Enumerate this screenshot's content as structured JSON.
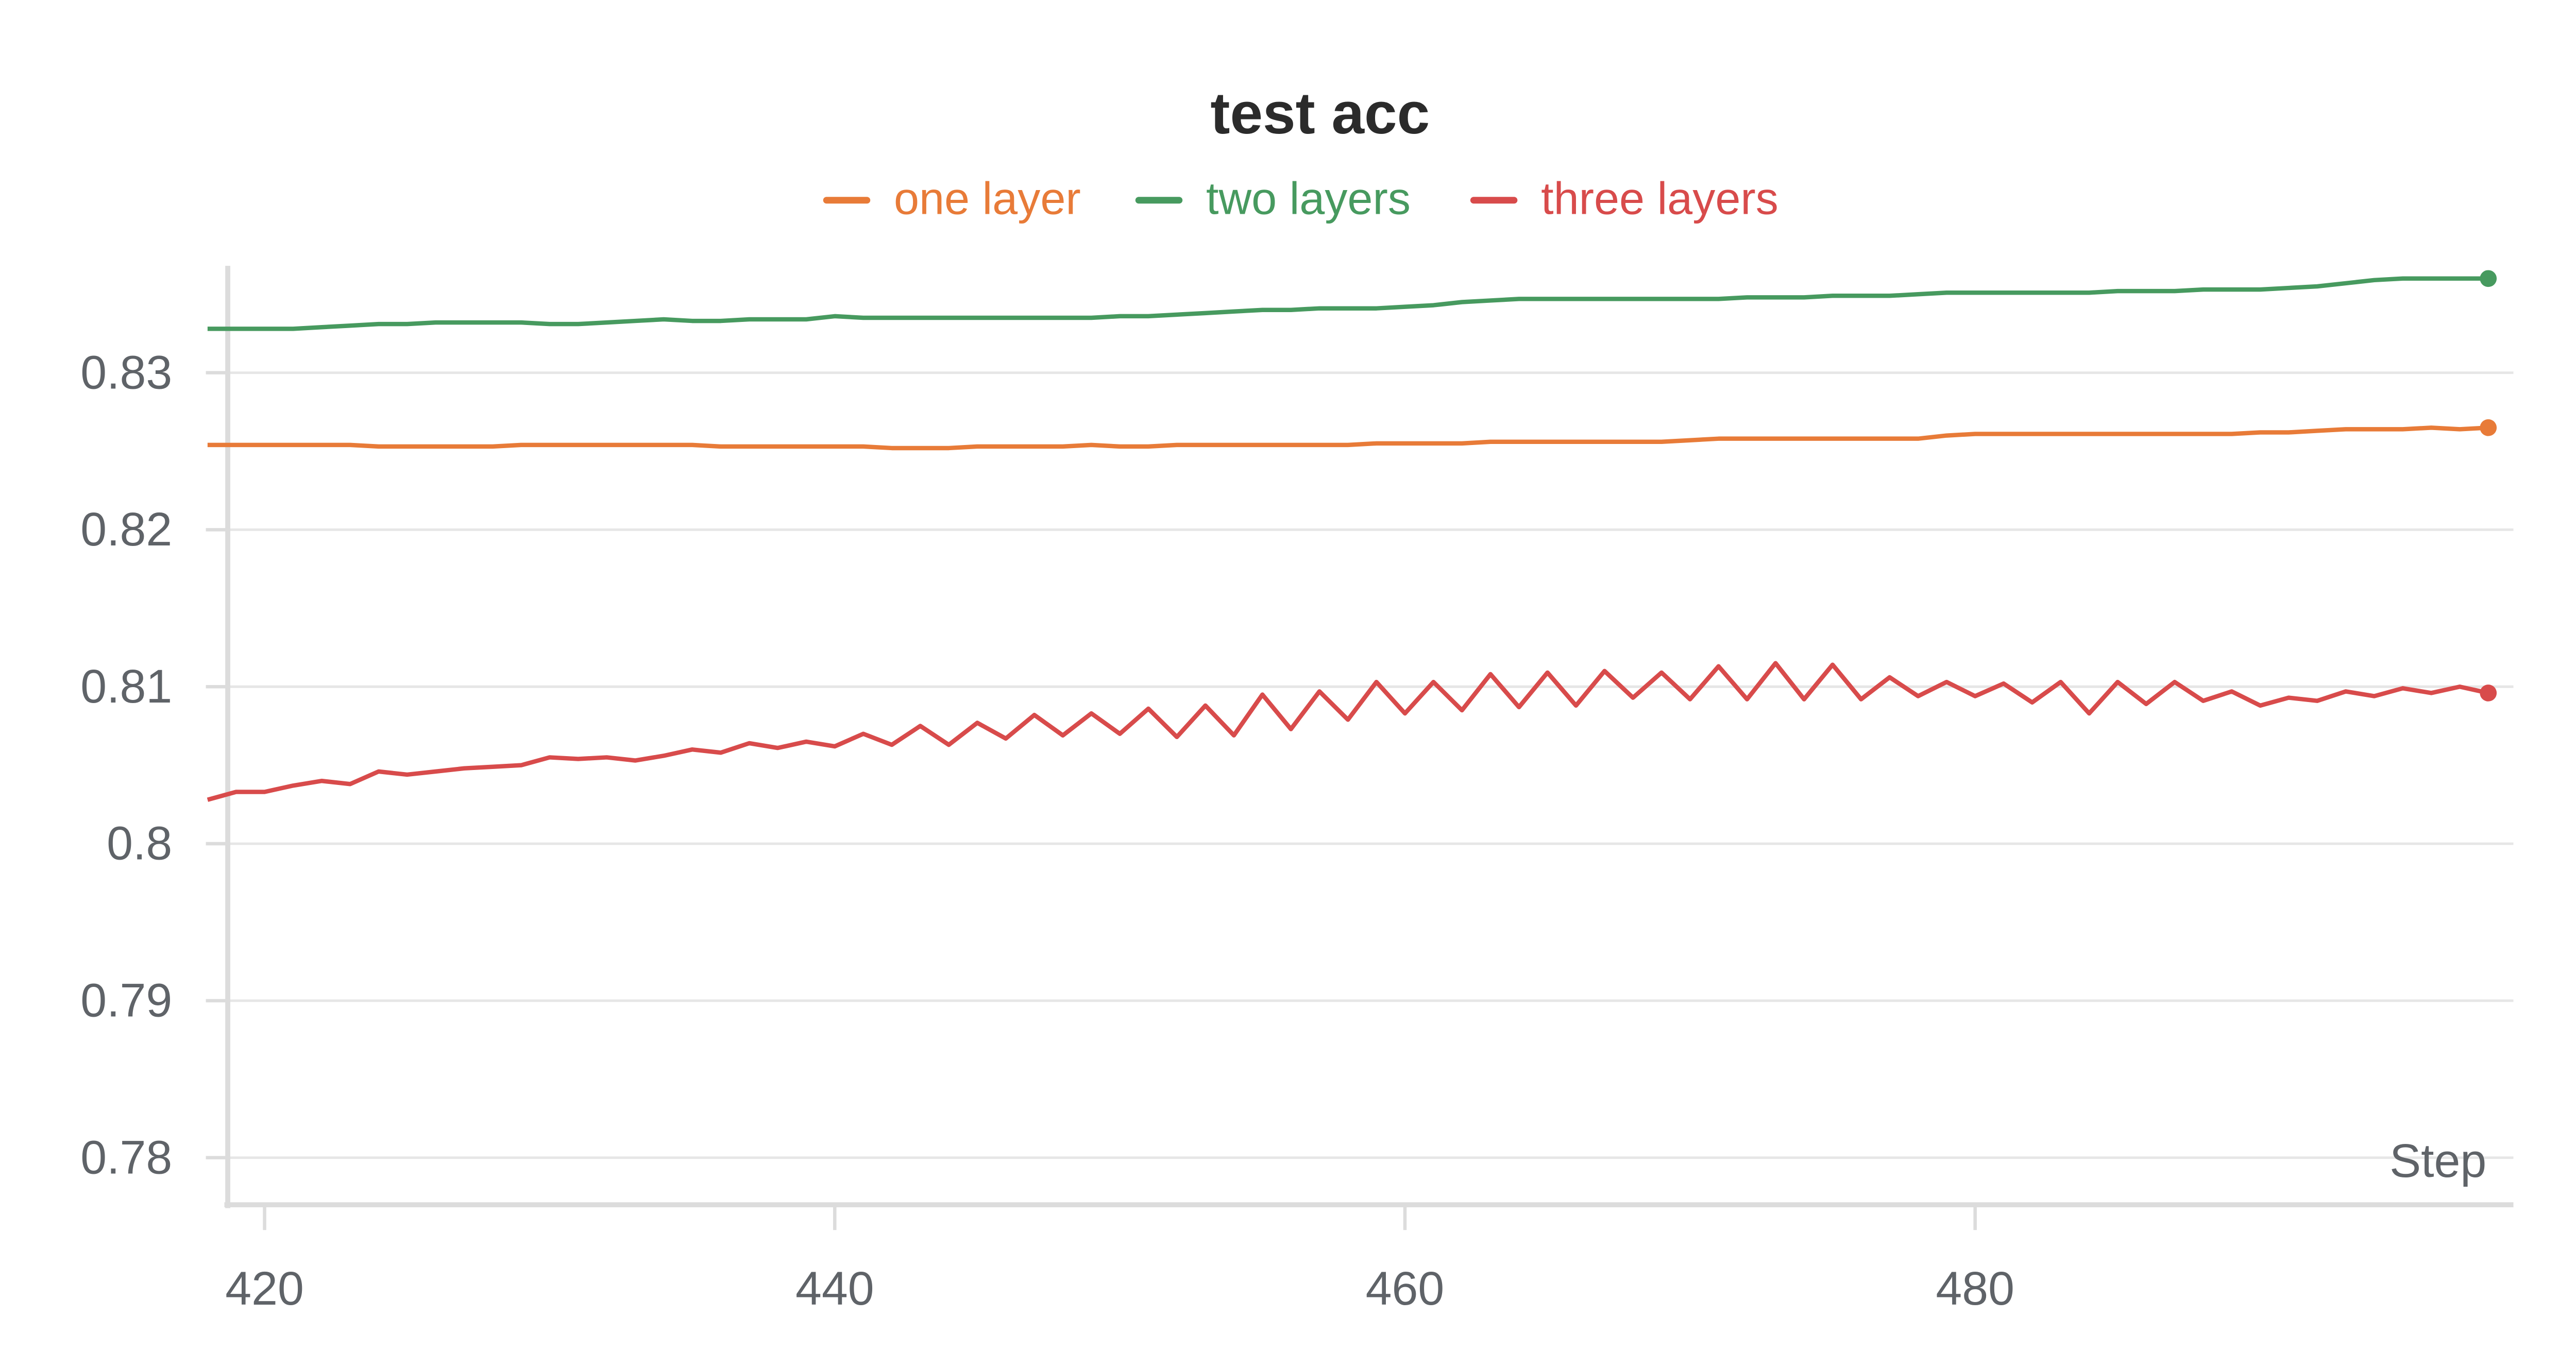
{
  "chart_data": {
    "type": "line",
    "title": "test acc",
    "x_label": "Step",
    "x": [
      418,
      419,
      420,
      421,
      422,
      423,
      424,
      425,
      426,
      427,
      428,
      429,
      430,
      431,
      432,
      433,
      434,
      435,
      436,
      437,
      438,
      439,
      440,
      441,
      442,
      443,
      444,
      445,
      446,
      447,
      448,
      449,
      450,
      451,
      452,
      453,
      454,
      455,
      456,
      457,
      458,
      459,
      460,
      461,
      462,
      463,
      464,
      465,
      466,
      467,
      468,
      469,
      470,
      471,
      472,
      473,
      474,
      475,
      476,
      477,
      478,
      479,
      480,
      481,
      482,
      483,
      484,
      485,
      486,
      487,
      488,
      489,
      490,
      491,
      492,
      493,
      494,
      495,
      496,
      497,
      498
    ],
    "series": [
      {
        "name": "one layer",
        "color": "#e87b38",
        "values": [
          0.8254,
          0.8254,
          0.8254,
          0.8254,
          0.8254,
          0.8254,
          0.8253,
          0.8253,
          0.8253,
          0.8253,
          0.8253,
          0.8254,
          0.8254,
          0.8254,
          0.8254,
          0.8254,
          0.8254,
          0.8254,
          0.8253,
          0.8253,
          0.8253,
          0.8253,
          0.8253,
          0.8253,
          0.8252,
          0.8252,
          0.8252,
          0.8253,
          0.8253,
          0.8253,
          0.8253,
          0.8254,
          0.8253,
          0.8253,
          0.8254,
          0.8254,
          0.8254,
          0.8254,
          0.8254,
          0.8254,
          0.8254,
          0.8255,
          0.8255,
          0.8255,
          0.8255,
          0.8256,
          0.8256,
          0.8256,
          0.8256,
          0.8256,
          0.8256,
          0.8256,
          0.8257,
          0.8258,
          0.8258,
          0.8258,
          0.8258,
          0.8258,
          0.8258,
          0.8258,
          0.8258,
          0.826,
          0.8261,
          0.8261,
          0.8261,
          0.8261,
          0.8261,
          0.8261,
          0.8261,
          0.8261,
          0.8261,
          0.8261,
          0.8262,
          0.8262,
          0.8263,
          0.8264,
          0.8264,
          0.8264,
          0.8265,
          0.8264,
          0.8265
        ]
      },
      {
        "name": "two layers",
        "color": "#479a5f",
        "values": [
          0.8328,
          0.8328,
          0.8328,
          0.8328,
          0.8329,
          0.833,
          0.8331,
          0.8331,
          0.8332,
          0.8332,
          0.8332,
          0.8332,
          0.8331,
          0.8331,
          0.8332,
          0.8333,
          0.8334,
          0.8333,
          0.8333,
          0.8334,
          0.8334,
          0.8334,
          0.8336,
          0.8335,
          0.8335,
          0.8335,
          0.8335,
          0.8335,
          0.8335,
          0.8335,
          0.8335,
          0.8335,
          0.8336,
          0.8336,
          0.8337,
          0.8338,
          0.8339,
          0.834,
          0.834,
          0.8341,
          0.8341,
          0.8341,
          0.8342,
          0.8343,
          0.8345,
          0.8346,
          0.8347,
          0.8347,
          0.8347,
          0.8347,
          0.8347,
          0.8347,
          0.8347,
          0.8347,
          0.8348,
          0.8348,
          0.8348,
          0.8349,
          0.8349,
          0.8349,
          0.835,
          0.8351,
          0.8351,
          0.8351,
          0.8351,
          0.8351,
          0.8351,
          0.8352,
          0.8352,
          0.8352,
          0.8353,
          0.8353,
          0.8353,
          0.8354,
          0.8355,
          0.8357,
          0.8359,
          0.836,
          0.836,
          0.836,
          0.836
        ]
      },
      {
        "name": "three layers",
        "color": "#d84b4b",
        "values": [
          0.8028,
          0.8033,
          0.8033,
          0.8037,
          0.804,
          0.8038,
          0.8046,
          0.8044,
          0.8046,
          0.8048,
          0.8049,
          0.805,
          0.8055,
          0.8054,
          0.8055,
          0.8053,
          0.8056,
          0.806,
          0.8058,
          0.8064,
          0.8061,
          0.8065,
          0.8062,
          0.807,
          0.8063,
          0.8075,
          0.8063,
          0.8077,
          0.8067,
          0.8082,
          0.8069,
          0.8083,
          0.807,
          0.8086,
          0.8068,
          0.8088,
          0.8069,
          0.8095,
          0.8073,
          0.8097,
          0.8079,
          0.8103,
          0.8083,
          0.8103,
          0.8085,
          0.8108,
          0.8087,
          0.8109,
          0.8088,
          0.811,
          0.8093,
          0.8109,
          0.8092,
          0.8113,
          0.8092,
          0.8115,
          0.8092,
          0.8114,
          0.8092,
          0.8106,
          0.8094,
          0.8103,
          0.8094,
          0.8102,
          0.809,
          0.8103,
          0.8083,
          0.8103,
          0.8089,
          0.8103,
          0.8091,
          0.8097,
          0.8088,
          0.8093,
          0.8091,
          0.8097,
          0.8094,
          0.8099,
          0.8096,
          0.81,
          0.8096
        ]
      }
    ],
    "xlim": [
      418,
      499
    ],
    "xticks": [
      420,
      440,
      460,
      480
    ],
    "ylim": [
      0.777,
      0.8367
    ],
    "yticks": [
      0.78,
      0.79,
      0.8,
      0.81,
      0.82,
      0.83
    ],
    "grid": true
  }
}
